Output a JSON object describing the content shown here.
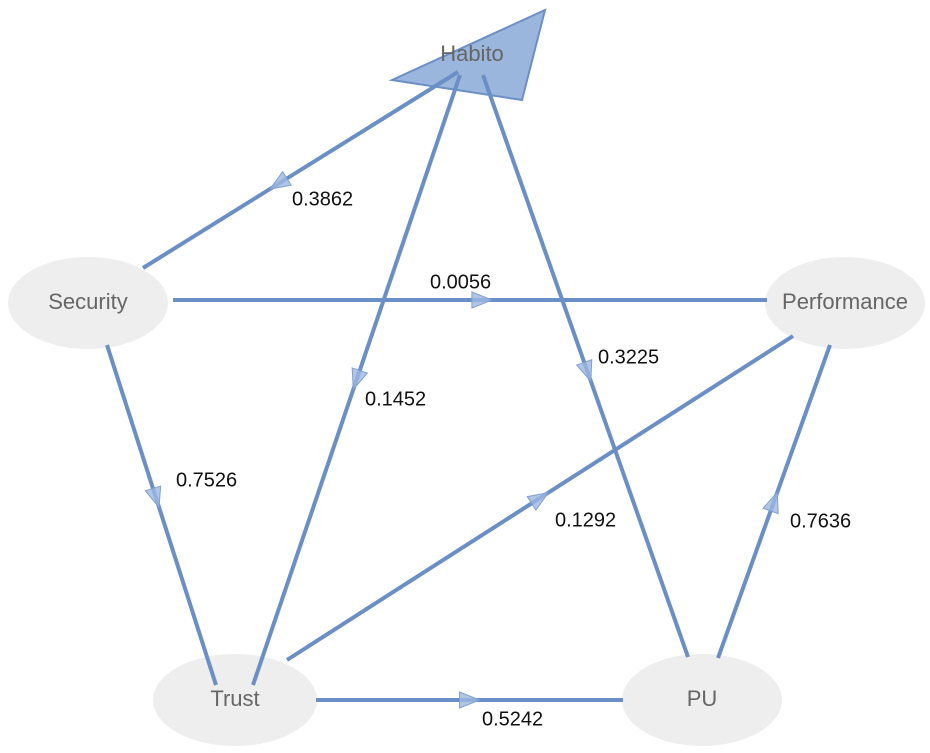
{
  "nodes": [
    {
      "label": "Habito"
    },
    {
      "label": "Security"
    },
    {
      "label": "Performance"
    },
    {
      "label": "Trust"
    },
    {
      "label": "PU"
    }
  ],
  "edges": [
    {
      "label": "0.3862"
    },
    {
      "label": "0.0056"
    },
    {
      "label": "0.1452"
    },
    {
      "label": "0.3225"
    },
    {
      "label": "0.7526"
    },
    {
      "label": "0.1292"
    },
    {
      "label": "0.7636"
    },
    {
      "label": "0.5242"
    }
  ]
}
